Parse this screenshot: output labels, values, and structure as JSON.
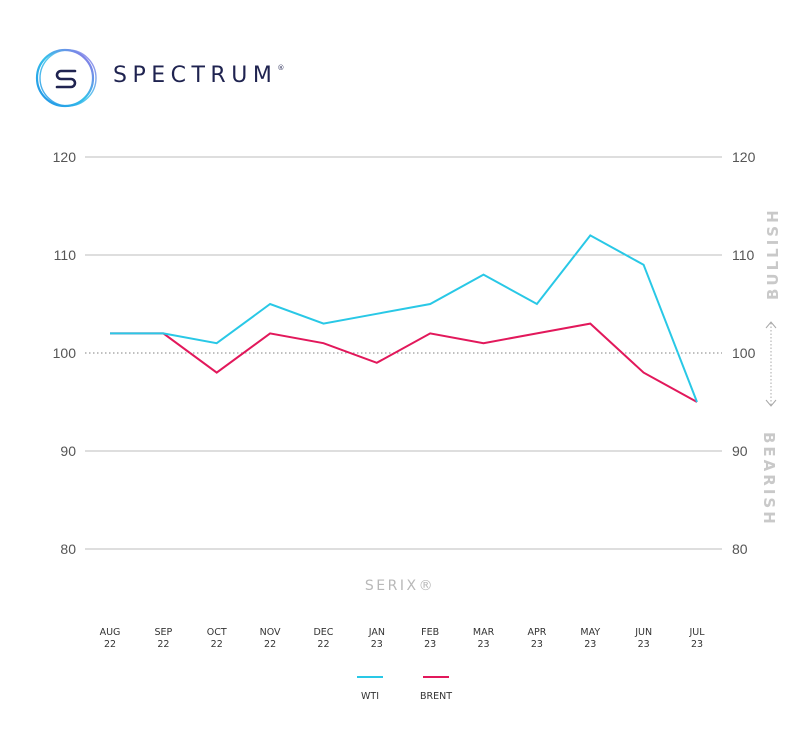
{
  "brand": {
    "logo_icon": "spectrum-s-ring-logo",
    "name": "SPECTRUM",
    "registered_mark": "®"
  },
  "colors": {
    "wti": "#29c8e6",
    "brent": "#e2185b",
    "grid": "#bdbdbd",
    "baseline_dotted": "#9a9a9a",
    "side_label": "#c9c9c9",
    "brand_text": "#1f2350"
  },
  "axis": {
    "title": "SERIX®",
    "left_ticks": [
      "120",
      "110",
      "100",
      "90",
      "80"
    ],
    "right_ticks": [
      "120",
      "110",
      "100",
      "90",
      "80"
    ],
    "bullish_label": "BULLISH",
    "bearish_label": "BEARISH",
    "x_labels": [
      {
        "month": "AUG",
        "year": "22"
      },
      {
        "month": "SEP",
        "year": "22"
      },
      {
        "month": "OCT",
        "year": "22"
      },
      {
        "month": "NOV",
        "year": "22"
      },
      {
        "month": "DEC",
        "year": "22"
      },
      {
        "month": "JAN",
        "year": "23"
      },
      {
        "month": "FEB",
        "year": "23"
      },
      {
        "month": "MAR",
        "year": "23"
      },
      {
        "month": "APR",
        "year": "23"
      },
      {
        "month": "MAY",
        "year": "23"
      },
      {
        "month": "JUN",
        "year": "23"
      },
      {
        "month": "JUL",
        "year": "23"
      }
    ]
  },
  "legend": [
    {
      "label": "WTI",
      "color": "#29c8e6"
    },
    {
      "label": "BRENT",
      "color": "#e2185b"
    }
  ],
  "chart_data": {
    "type": "line",
    "title": "",
    "xlabel": "SERIX®",
    "ylabel": "",
    "ylim": [
      80,
      120
    ],
    "yticks": [
      80,
      90,
      100,
      110,
      120
    ],
    "grid": true,
    "reference_line": 100,
    "legend_position": "bottom",
    "annotations": [
      "BULLISH (above 100)",
      "BEARISH (below 100)"
    ],
    "categories": [
      "AUG 22",
      "SEP 22",
      "OCT 22",
      "NOV 22",
      "DEC 22",
      "JAN 23",
      "FEB 23",
      "MAR 23",
      "APR 23",
      "MAY 23",
      "JUN 23",
      "JUL 23"
    ],
    "series": [
      {
        "name": "WTI",
        "color": "#29c8e6",
        "values": [
          102,
          102,
          101,
          105,
          103,
          104,
          105,
          108,
          105,
          112,
          109,
          95
        ]
      },
      {
        "name": "BRENT",
        "color": "#e2185b",
        "values": [
          102,
          102,
          98,
          102,
          101,
          99,
          102,
          101,
          102,
          103,
          98,
          95
        ]
      }
    ]
  }
}
